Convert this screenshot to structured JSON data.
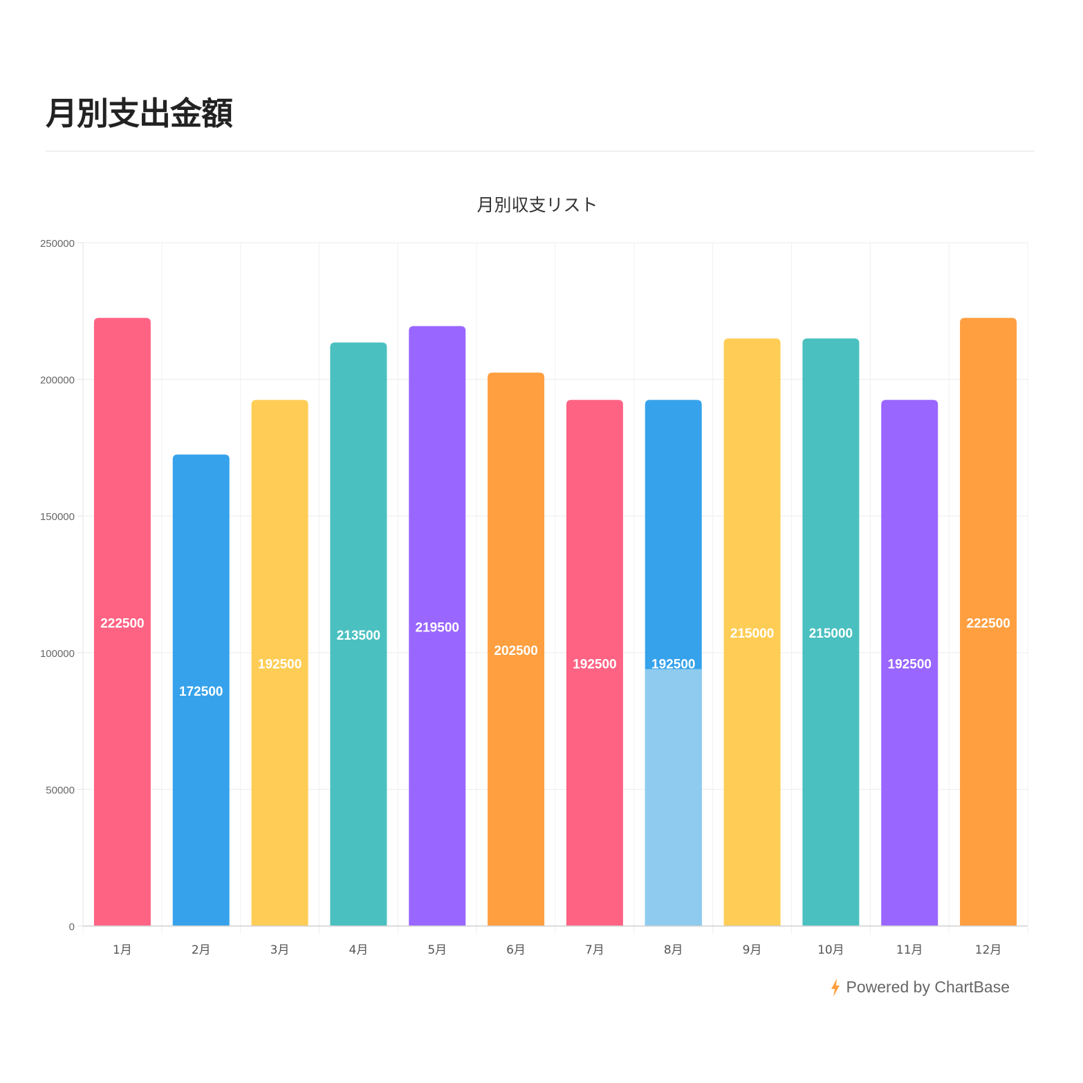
{
  "page": {
    "title": "月別支出金額"
  },
  "footer": {
    "powered_by": "Powered by ChartBase",
    "icon": "lightning-bolt-icon",
    "icon_color": "#ff9f40"
  },
  "chart_data": {
    "type": "bar",
    "title": "月別収支リスト",
    "xlabel": "",
    "ylabel": "",
    "categories": [
      "1月",
      "2月",
      "3月",
      "4月",
      "5月",
      "6月",
      "7月",
      "8月",
      "9月",
      "10月",
      "11月",
      "12月"
    ],
    "values": [
      222500,
      172500,
      192500,
      213500,
      219500,
      202500,
      192500,
      192500,
      215000,
      215000,
      192500,
      222500
    ],
    "colors": [
      "#ff6384",
      "#36a2eb",
      "#ffcd56",
      "#4bc0c0",
      "#9966ff",
      "#ff9f40",
      "#ff6384",
      "#36a2eb",
      "#ffcd56",
      "#4bc0c0",
      "#9966ff",
      "#ff9f40"
    ],
    "highlight": {
      "category": "8月",
      "lower_value": 94000,
      "lower_color": "#8ecbef"
    },
    "ylim": [
      0,
      250000
    ],
    "yticks": [
      0,
      50000,
      100000,
      150000,
      200000,
      250000
    ],
    "grid": true,
    "data_labels": true,
    "legend": "none"
  }
}
